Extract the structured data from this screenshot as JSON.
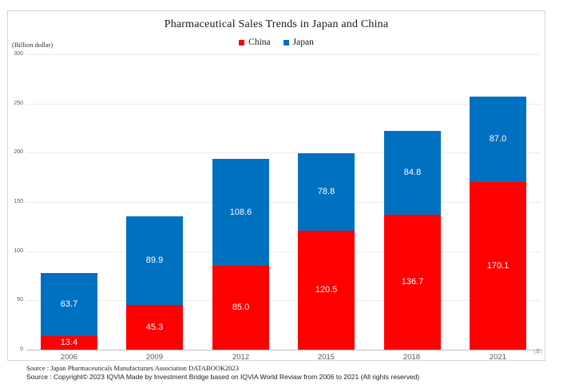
{
  "title": "Pharmaceutical Sales Trends in Japan and China",
  "y_axis_unit": "(Billion dollar)",
  "x_axis_unit": "(年)",
  "legend": [
    {
      "label": "China",
      "color": "#ff0000"
    },
    {
      "label": "Japan",
      "color": "#0070c0"
    }
  ],
  "sources": {
    "line1": "Source : Japan Pharmaceuticals Manufacturars Association DATABOOK2023",
    "line2": "Source : Copyright© 2023 IQVIA Made by Investment Bridge based on IQVIA World Reviaw from 2006 to 2021 (All rights reserved)"
  },
  "chart_data": {
    "type": "bar",
    "stacked": true,
    "title": "Pharmaceutical Sales Trends in Japan and China",
    "categories": [
      "2006",
      "2009",
      "2012",
      "2015",
      "2018",
      "2021"
    ],
    "series": [
      {
        "name": "China",
        "color": "#ff0000",
        "values": [
          13.4,
          45.3,
          85.0,
          120.5,
          136.7,
          170.1
        ]
      },
      {
        "name": "Japan",
        "color": "#0070c0",
        "values": [
          63.7,
          89.9,
          108.6,
          78.8,
          84.8,
          87.0
        ]
      }
    ],
    "xlabel": "(年)",
    "ylabel": "(Billion dollar)",
    "ylim": [
      0,
      300
    ],
    "ytick_interval": 50,
    "grid": true,
    "legend_position": "top",
    "value_labels": true
  }
}
